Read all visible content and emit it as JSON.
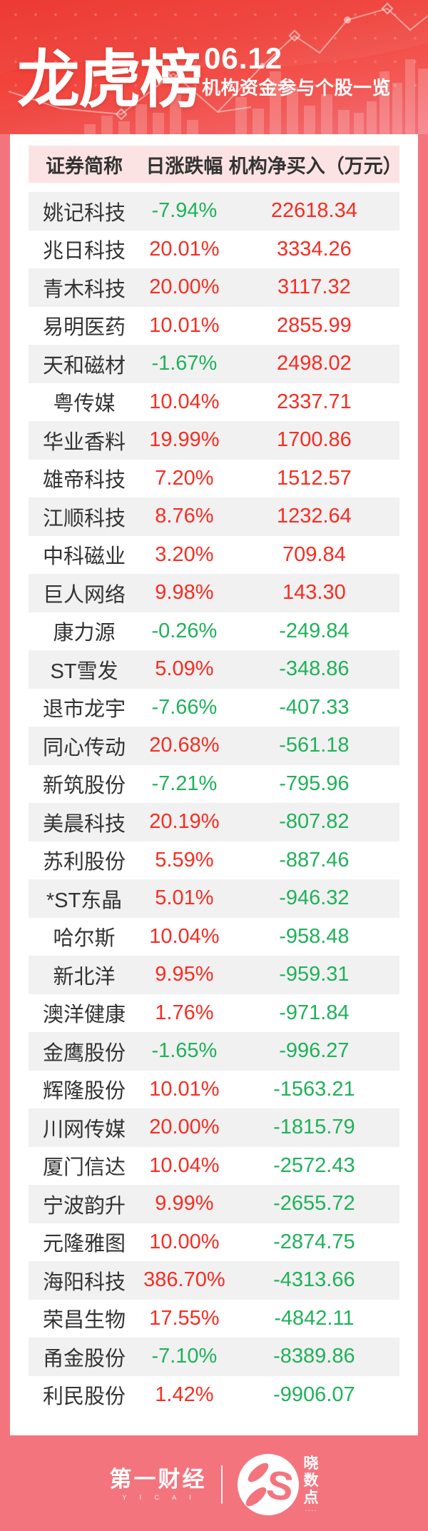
{
  "header": {
    "title": "龙虎榜",
    "date": "06.12",
    "subtitle": "机构资金参与个股一览"
  },
  "chart_data": {
    "type": "table",
    "title": "龙虎榜 06.12 机构资金参与个股一览",
    "columns": [
      "证券简称",
      "日涨跌幅",
      "机构净买入（万元）"
    ],
    "rows": [
      [
        "姚记科技",
        "-7.94%",
        "22618.34"
      ],
      [
        "兆日科技",
        "20.01%",
        "3334.26"
      ],
      [
        "青木科技",
        "20.00%",
        "3117.32"
      ],
      [
        "易明医药",
        "10.01%",
        "2855.99"
      ],
      [
        "天和磁材",
        "-1.67%",
        "2498.02"
      ],
      [
        "粤传媒",
        "10.04%",
        "2337.71"
      ],
      [
        "华业香料",
        "19.99%",
        "1700.86"
      ],
      [
        "雄帝科技",
        "7.20%",
        "1512.57"
      ],
      [
        "江顺科技",
        "8.76%",
        "1232.64"
      ],
      [
        "中科磁业",
        "3.20%",
        "709.84"
      ],
      [
        "巨人网络",
        "9.98%",
        "143.30"
      ],
      [
        "康力源",
        "-0.26%",
        "-249.84"
      ],
      [
        "ST雪发",
        "5.09%",
        "-348.86"
      ],
      [
        "退市龙宇",
        "-7.66%",
        "-407.33"
      ],
      [
        "同心传动",
        "20.68%",
        "-561.18"
      ],
      [
        "新筑股份",
        "-7.21%",
        "-795.96"
      ],
      [
        "美晨科技",
        "20.19%",
        "-807.82"
      ],
      [
        "苏利股份",
        "5.59%",
        "-887.46"
      ],
      [
        "*ST东晶",
        "5.01%",
        "-946.32"
      ],
      [
        "哈尔斯",
        "10.04%",
        "-958.48"
      ],
      [
        "新北洋",
        "9.95%",
        "-959.31"
      ],
      [
        "澳洋健康",
        "1.76%",
        "-971.84"
      ],
      [
        "金鹰股份",
        "-1.65%",
        "-996.27"
      ],
      [
        "辉隆股份",
        "10.01%",
        "-1563.21"
      ],
      [
        "川网传媒",
        "20.00%",
        "-1815.79"
      ],
      [
        "厦门信达",
        "10.04%",
        "-2572.43"
      ],
      [
        "宁波韵升",
        "9.99%",
        "-2655.72"
      ],
      [
        "元隆雅图",
        "10.00%",
        "-2874.75"
      ],
      [
        "海阳科技",
        "386.70%",
        "-4313.66"
      ],
      [
        "荣昌生物",
        "17.55%",
        "-4842.11"
      ],
      [
        "甬金股份",
        "-7.10%",
        "-8389.86"
      ],
      [
        "利民股份",
        "1.42%",
        "-9906.07"
      ]
    ],
    "colors": {
      "positive": "#f92c21",
      "negative": "#1fb259"
    },
    "layout_hints": {
      "alternating_rows": true,
      "header_bg": "#fce3e3",
      "alt_row_bg": "#f1f1f1"
    }
  },
  "footer": {
    "brand": "第一财经",
    "brand_latin": "Y I C A I",
    "logo_letter": "S",
    "partner_chars": [
      "晓",
      "数",
      "点"
    ],
    "partner_dots": "····"
  }
}
